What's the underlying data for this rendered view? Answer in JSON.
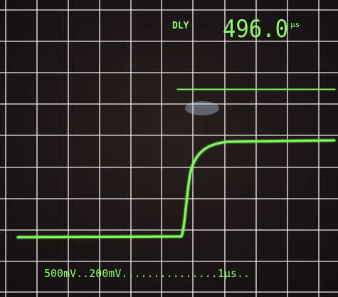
{
  "readout": {
    "label": "DLY",
    "value": "496.0",
    "unit": "µs"
  },
  "settings": {
    "channel1": "500mV",
    "channel2": "200mV",
    "separator": "...............",
    "timebase": "1µs",
    "trailer": ".."
  }
}
